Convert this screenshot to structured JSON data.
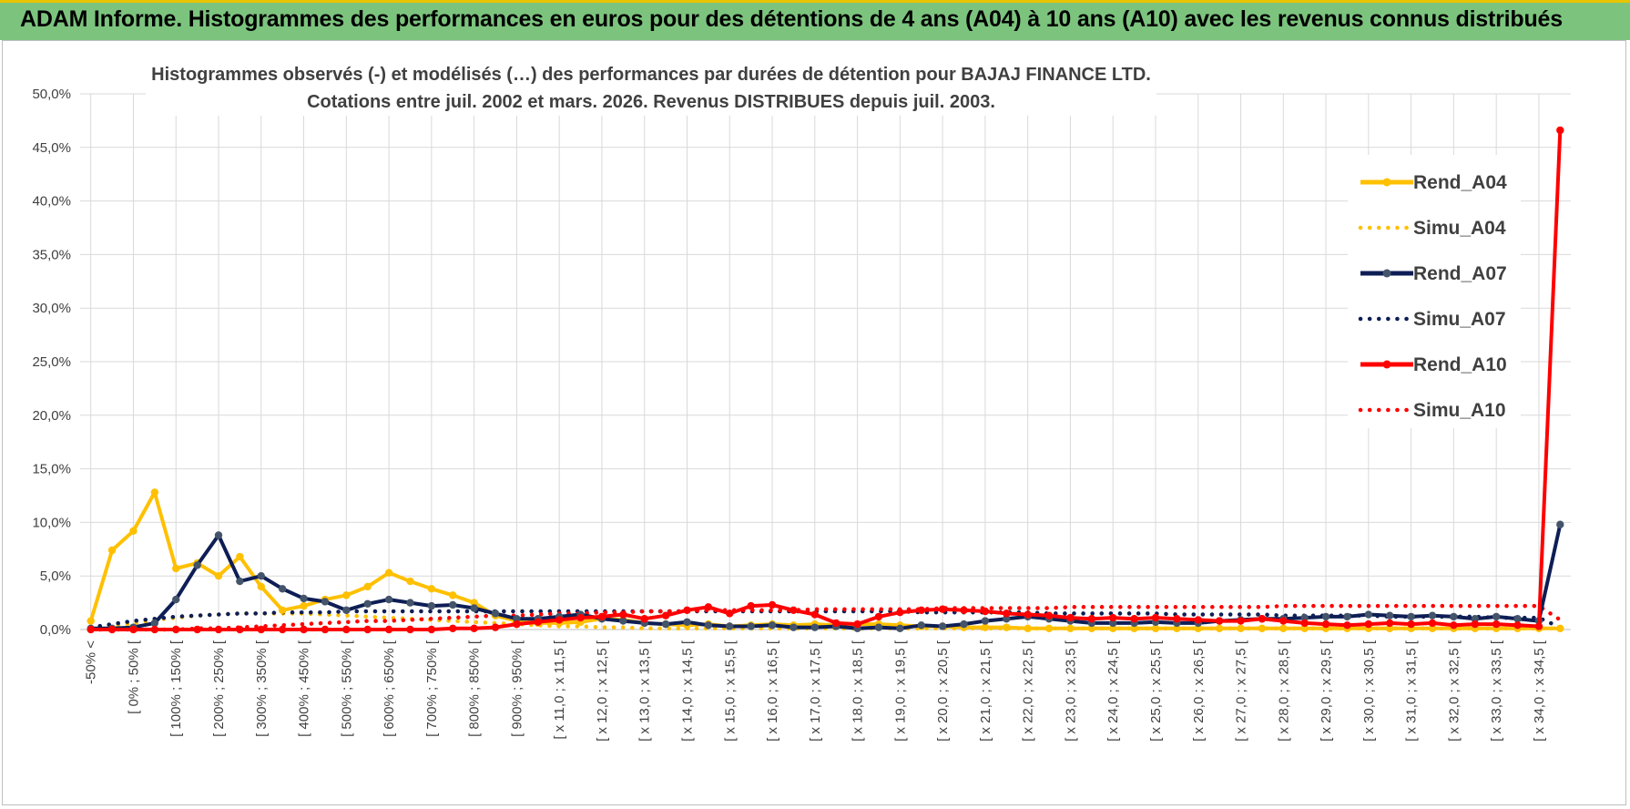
{
  "header": {
    "title": "ADAM Informe. Histogrammes des performances en euros pour des détentions de 4 ans (A04) à 10 ans (A10) avec les revenus connus distribués"
  },
  "chart_data": {
    "type": "line",
    "title_line1": "Histogrammes observés (-) et modélisés (…) des performances par durées de détention pour BAJAJ FINANCE LTD.",
    "title_line2": "Cotations entre juil. 2002 et mars. 2026. Revenus DISTRIBUES depuis juil. 2003.",
    "ylim": [
      0,
      50
    ],
    "y_ticks": [
      "0,0%",
      "5,0%",
      "10,0%",
      "15,0%",
      "20,0%",
      "25,0%",
      "30,0%",
      "35,0%",
      "40,0%",
      "45,0%",
      "50,0%"
    ],
    "x_tick_labels": [
      "-50% <",
      "[ 0% ; 50% [",
      "[ 100% ; 150% [",
      "[ 200% ; 250% [",
      "[ 300% ; 350% [",
      "[ 400% ; 450% [",
      "[ 500% ; 550% [",
      "[ 600% ; 650% [",
      "[ 700% ; 750% [",
      "[ 800% ; 850% [",
      "[ 900% ; 950% [",
      "[ x 11,0 ; x 11,5 [",
      "[ x 12,0 ; x 12,5 [",
      "[ x 13,0 ; x 13,5 [",
      "[ x 14,0 ; x 14,5 [",
      "[ x 15,0 ; x 15,5 [",
      "[ x 16,0 ; x 16,5 [",
      "[ x 17,0 ; x 17,5 [",
      "[ x 18,0 ; x 18,5 [",
      "[ x 19,0 ; x 19,5 [",
      "[ x 20,0 ; x 20,5 [",
      "[ x 21,0 ; x 21,5 [",
      "[ x 22,0 ; x 22,5 [",
      "[ x 23,0 ; x 23,5 [",
      "[ x 24,0 ; x 24,5 [",
      "[ x 25,0 ; x 25,5 [",
      "[ x 26,0 ; x 26,5 [",
      "[ x 27,0 ; x 27,5 [",
      "[ x 28,0 ; x 28,5 [",
      "[ x 29,0 ; x 29,5 [",
      "[ x 30,0 ; x 30,5 [",
      "[ x 31,0 ; x 31,5 [",
      "[ x 32,0 ; x 32,5 [",
      "[ x 33,0 ; x 33,5 [",
      "[ x 34,0 ; x 34,5 ["
    ],
    "n_categories": 70,
    "legend": [
      "Rend_A04",
      "Simu_A04",
      "Rend_A07",
      "Simu_A07",
      "Rend_A10",
      "Simu_A10"
    ],
    "legend_position": "right",
    "series": [
      {
        "name": "Rend_A04",
        "style": "solid",
        "color": "#ffc000",
        "values": [
          0.8,
          7.4,
          9.2,
          12.8,
          5.7,
          6.2,
          5.0,
          6.8,
          4.0,
          1.8,
          2.2,
          2.8,
          3.2,
          4.0,
          5.3,
          4.5,
          3.8,
          3.2,
          2.5,
          1.3,
          0.8,
          0.6,
          0.6,
          0.7,
          1.0,
          0.9,
          0.6,
          0.5,
          0.4,
          0.5,
          0.3,
          0.4,
          0.5,
          0.4,
          0.5,
          0.4,
          0.5,
          0.5,
          0.4,
          0.3,
          0.3,
          0.2,
          0.2,
          0.2,
          0.1,
          0.1,
          0.1,
          0.1,
          0.1,
          0.1,
          0.1,
          0.1,
          0.1,
          0.1,
          0.1,
          0.1,
          0.1,
          0.1,
          0.1,
          0.1,
          0.1,
          0.1,
          0.1,
          0.1,
          0.1,
          0.1,
          0.1,
          0.1,
          0.1,
          0.1
        ]
      },
      {
        "name": "Simu_A04",
        "style": "dotted",
        "color": "#ffc000",
        "values": [
          0.1,
          0.3,
          0.6,
          0.9,
          1.1,
          1.3,
          1.4,
          1.5,
          1.5,
          1.5,
          1.5,
          1.4,
          1.3,
          1.2,
          1.1,
          1.0,
          0.9,
          0.8,
          0.7,
          0.6,
          0.5,
          0.4,
          0.3,
          0.3,
          0.2,
          0.2,
          0.1,
          0.1,
          0.1,
          0.1,
          0.1,
          0.1,
          0.1,
          0.1,
          0.1,
          0.1,
          0.1,
          0.1,
          0.1,
          0.1,
          0.1,
          0.1,
          0.1,
          0.1,
          0.1,
          0.1,
          0.1,
          0.1,
          0.1,
          0.1,
          0.1,
          0.1,
          0.1,
          0.1,
          0.1,
          0.1,
          0.1,
          0.1,
          0.1,
          0.1,
          0.1,
          0.1,
          0.1,
          0.1,
          0.1,
          0.1,
          0.1,
          0.1,
          0.1,
          0.1
        ]
      },
      {
        "name": "Rend_A07",
        "style": "solid",
        "color": "#0e1e55",
        "values": [
          0.1,
          0.1,
          0.2,
          0.6,
          2.8,
          6.0,
          8.8,
          4.5,
          5.0,
          3.8,
          2.9,
          2.6,
          1.8,
          2.4,
          2.8,
          2.5,
          2.2,
          2.3,
          2.0,
          1.5,
          1.0,
          1.0,
          1.2,
          1.4,
          1.0,
          0.8,
          0.6,
          0.5,
          0.7,
          0.4,
          0.3,
          0.3,
          0.4,
          0.2,
          0.2,
          0.3,
          0.1,
          0.2,
          0.1,
          0.4,
          0.3,
          0.5,
          0.8,
          1.0,
          1.2,
          1.0,
          0.8,
          0.6,
          0.6,
          0.6,
          0.7,
          0.6,
          0.6,
          0.8,
          0.9,
          1.0,
          1.0,
          1.1,
          1.2,
          1.2,
          1.4,
          1.3,
          1.2,
          1.3,
          1.2,
          1.0,
          1.2,
          1.0,
          0.8,
          9.8
        ]
      },
      {
        "name": "Simu_A07",
        "style": "dotted",
        "color": "#0e1e55",
        "values": [
          0.2,
          0.5,
          0.8,
          1.0,
          1.2,
          1.3,
          1.4,
          1.5,
          1.5,
          1.6,
          1.6,
          1.6,
          1.7,
          1.7,
          1.7,
          1.7,
          1.7,
          1.7,
          1.7,
          1.7,
          1.7,
          1.7,
          1.7,
          1.7,
          1.7,
          1.7,
          1.7,
          1.7,
          1.7,
          1.7,
          1.7,
          1.7,
          1.7,
          1.7,
          1.7,
          1.7,
          1.7,
          1.7,
          1.7,
          1.6,
          1.6,
          1.6,
          1.6,
          1.6,
          1.6,
          1.5,
          1.5,
          1.5,
          1.5,
          1.5,
          1.5,
          1.4,
          1.4,
          1.4,
          1.4,
          1.4,
          1.3,
          1.3,
          1.3,
          1.3,
          1.3,
          1.2,
          1.2,
          1.2,
          1.2,
          1.2,
          1.1,
          1.1,
          1.1,
          0.2
        ]
      },
      {
        "name": "Rend_A10",
        "style": "solid",
        "color": "#ff0000",
        "values": [
          0.0,
          0.0,
          0.0,
          0.0,
          0.0,
          0.0,
          0.0,
          0.0,
          0.0,
          0.0,
          0.0,
          0.0,
          0.0,
          0.0,
          0.0,
          0.0,
          0.0,
          0.1,
          0.1,
          0.2,
          0.5,
          0.7,
          0.9,
          1.1,
          1.2,
          1.4,
          1.0,
          1.3,
          1.8,
          2.1,
          1.5,
          2.2,
          2.3,
          1.8,
          1.4,
          0.6,
          0.5,
          1.2,
          1.6,
          1.8,
          1.9,
          1.8,
          1.7,
          1.5,
          1.4,
          1.3,
          1.1,
          1.0,
          1.1,
          1.0,
          1.1,
          1.0,
          0.9,
          0.8,
          0.8,
          1.0,
          0.8,
          0.6,
          0.5,
          0.4,
          0.5,
          0.6,
          0.5,
          0.6,
          0.4,
          0.5,
          0.5,
          0.4,
          0.3,
          46.6
        ]
      },
      {
        "name": "Simu_A10",
        "style": "dotted",
        "color": "#ff0000",
        "values": [
          0.0,
          0.0,
          0.0,
          0.0,
          0.0,
          0.1,
          0.1,
          0.2,
          0.3,
          0.4,
          0.5,
          0.6,
          0.7,
          0.8,
          0.8,
          0.9,
          1.0,
          1.1,
          1.2,
          1.3,
          1.3,
          1.4,
          1.5,
          1.5,
          1.6,
          1.6,
          1.7,
          1.7,
          1.7,
          1.8,
          1.8,
          1.8,
          1.8,
          1.8,
          1.9,
          1.9,
          1.9,
          1.9,
          1.9,
          1.9,
          2.0,
          2.0,
          2.0,
          2.0,
          2.0,
          2.0,
          2.1,
          2.1,
          2.1,
          2.1,
          2.1,
          2.1,
          2.1,
          2.1,
          2.1,
          2.1,
          2.2,
          2.2,
          2.2,
          2.2,
          2.2,
          2.2,
          2.2,
          2.2,
          2.2,
          2.2,
          2.2,
          2.2,
          2.2,
          0.9
        ]
      }
    ]
  }
}
